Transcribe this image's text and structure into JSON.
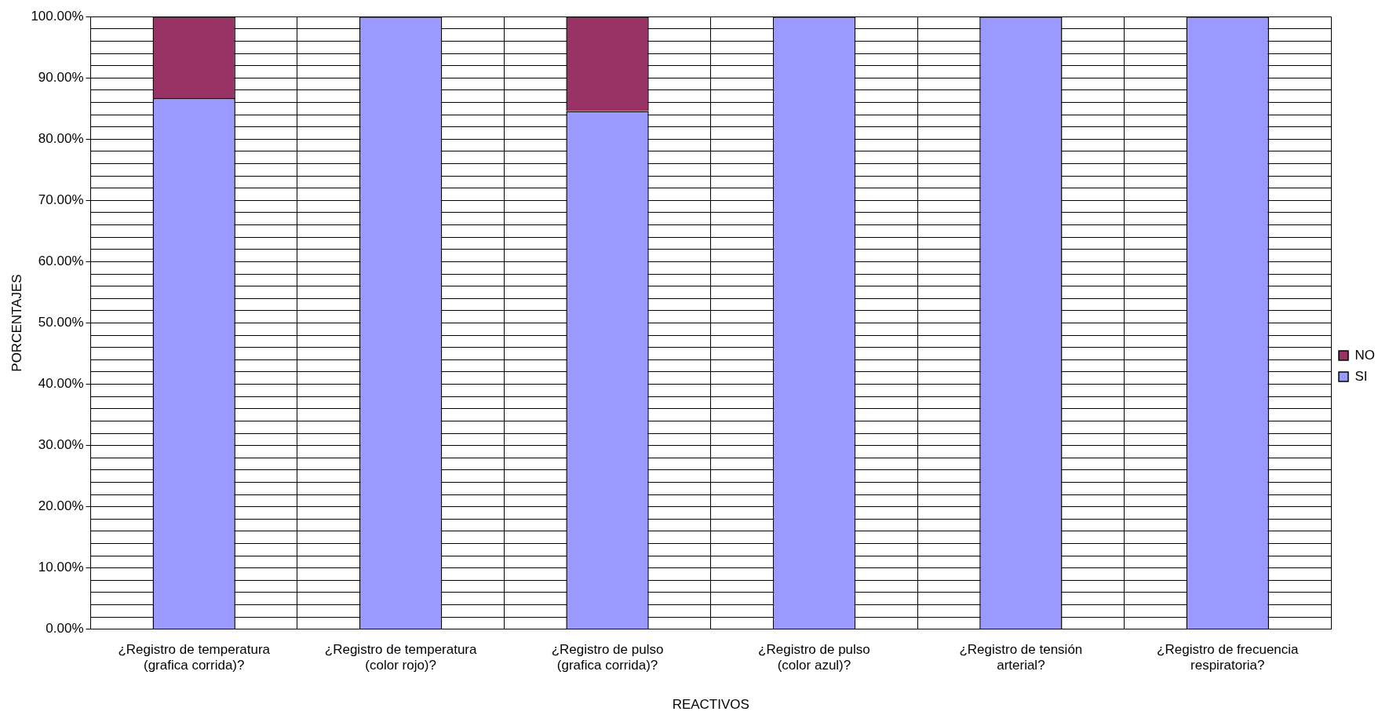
{
  "chart_data": {
    "type": "bar",
    "xlabel": "REACTIVOS",
    "ylabel": "PORCENTAJES",
    "categories": [
      "¿Registro de temperatura (grafica corrida)?",
      "¿Registro de temperatura (color rojo)?",
      "¿Registro de pulso (grafica corrida)?",
      "¿Registro de pulso (color azul)?",
      "¿Registro de tensión arterial?",
      "¿Registro de frecuencia respiratoria?"
    ],
    "stacked": true,
    "series": [
      {
        "name": "SI",
        "color": "#9999ff",
        "values": [
          86.7,
          100,
          84.6,
          100,
          100,
          100
        ]
      },
      {
        "name": "NO",
        "color": "#993366",
        "values": [
          13.3,
          0,
          15.4,
          0,
          0,
          0
        ]
      }
    ],
    "ylim": [
      0,
      100
    ],
    "yticks": [
      {
        "value": 0,
        "label": "0.00%"
      },
      {
        "value": 2,
        "label": null
      },
      {
        "value": 4,
        "label": null
      },
      {
        "value": 6,
        "label": null
      },
      {
        "value": 8,
        "label": null
      },
      {
        "value": 10,
        "label": "10.00%"
      },
      {
        "value": 12,
        "label": null
      },
      {
        "value": 14,
        "label": null
      },
      {
        "value": 16,
        "label": null
      },
      {
        "value": 18,
        "label": null
      },
      {
        "value": 20,
        "label": "20.00%"
      },
      {
        "value": 22,
        "label": null
      },
      {
        "value": 24,
        "label": null
      },
      {
        "value": 26,
        "label": null
      },
      {
        "value": 28,
        "label": null
      },
      {
        "value": 30,
        "label": "30.00%"
      },
      {
        "value": 32,
        "label": null
      },
      {
        "value": 34,
        "label": null
      },
      {
        "value": 36,
        "label": null
      },
      {
        "value": 38,
        "label": null
      },
      {
        "value": 40,
        "label": "40.00%"
      },
      {
        "value": 42,
        "label": null
      },
      {
        "value": 44,
        "label": null
      },
      {
        "value": 46,
        "label": null
      },
      {
        "value": 48,
        "label": null
      },
      {
        "value": 50,
        "label": "50.00%"
      },
      {
        "value": 52,
        "label": null
      },
      {
        "value": 54,
        "label": null
      },
      {
        "value": 56,
        "label": null
      },
      {
        "value": 58,
        "label": null
      },
      {
        "value": 60,
        "label": "60.00%"
      },
      {
        "value": 62,
        "label": null
      },
      {
        "value": 64,
        "label": null
      },
      {
        "value": 66,
        "label": null
      },
      {
        "value": 68,
        "label": null
      },
      {
        "value": 70,
        "label": "70.00%"
      },
      {
        "value": 72,
        "label": null
      },
      {
        "value": 74,
        "label": null
      },
      {
        "value": 76,
        "label": null
      },
      {
        "value": 78,
        "label": null
      },
      {
        "value": 80,
        "label": "80.00%"
      },
      {
        "value": 82,
        "label": null
      },
      {
        "value": 84,
        "label": null
      },
      {
        "value": 86,
        "label": null
      },
      {
        "value": 88,
        "label": null
      },
      {
        "value": 90,
        "label": "90.00%"
      },
      {
        "value": 92,
        "label": null
      },
      {
        "value": 94,
        "label": null
      },
      {
        "value": 96,
        "label": null
      },
      {
        "value": 98,
        "label": null
      },
      {
        "value": 100,
        "label": "100.00%"
      }
    ],
    "grid": true,
    "legend": "right"
  }
}
